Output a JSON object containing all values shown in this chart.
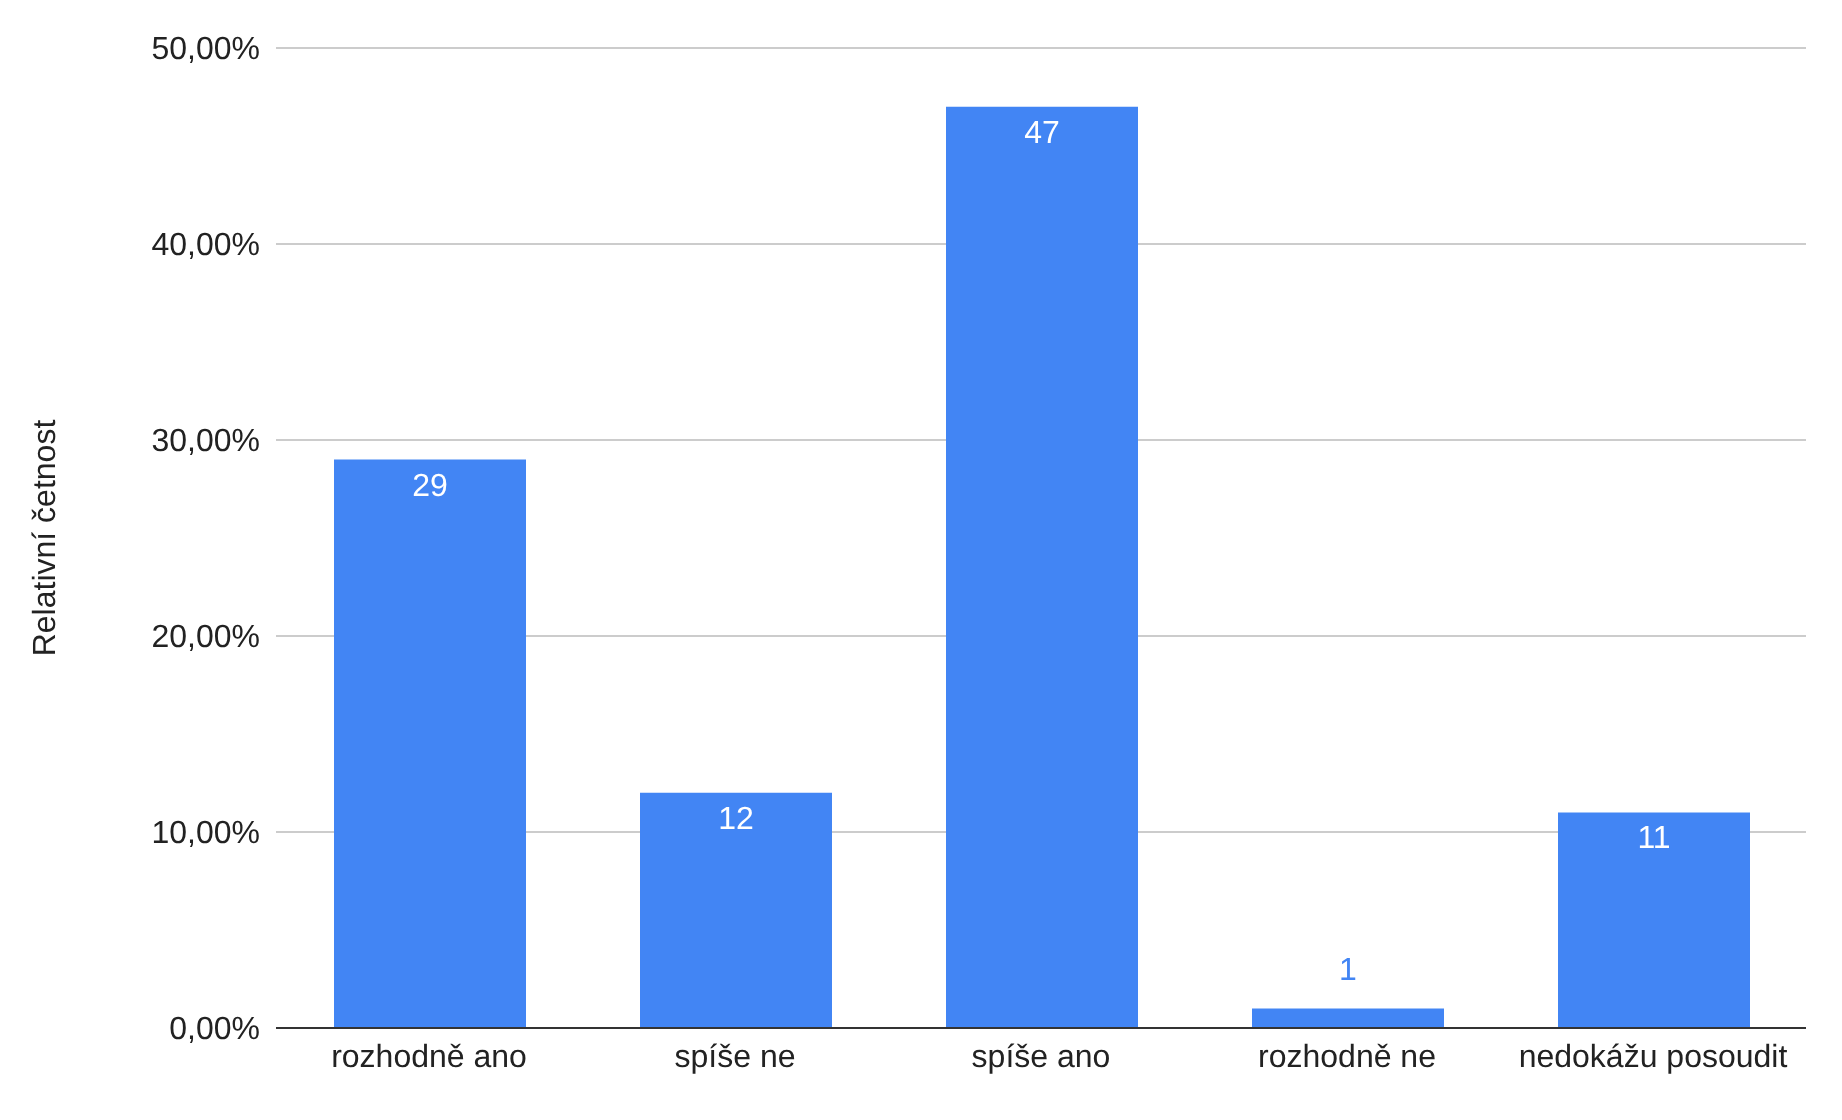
{
  "chart_data": {
    "type": "bar",
    "ylabel": "Relativní četnost",
    "categories": [
      "rozhodně ano",
      "spíše ne",
      "spíše ano",
      "rozhodně ne",
      "nedokážu posoudit"
    ],
    "values": [
      29,
      12,
      47,
      1,
      11
    ],
    "color": "#4285f4",
    "ylim": [
      0,
      50
    ],
    "yticks": [
      {
        "value": 0,
        "label": "0,00%"
      },
      {
        "value": 10,
        "label": "10,00%"
      },
      {
        "value": 20,
        "label": "20,00%"
      },
      {
        "value": 30,
        "label": "30,00%"
      },
      {
        "value": 40,
        "label": "40,00%"
      },
      {
        "value": 50,
        "label": "50,00%"
      }
    ],
    "grid": "y",
    "data_labels": true
  }
}
